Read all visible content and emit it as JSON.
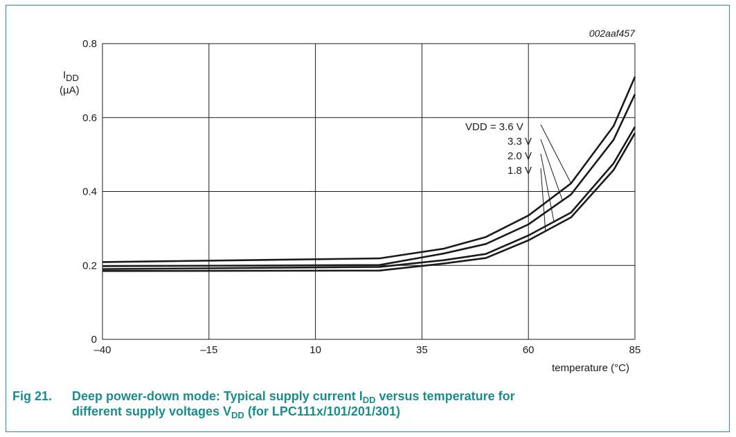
{
  "chart_data": {
    "type": "line",
    "figure_id": "002aaf457",
    "ylabel_main": "I",
    "ylabel_sub": "DD",
    "ylabel_unit": "(µA)",
    "xlabel": "temperature (°C)",
    "xlim": [
      -40,
      85
    ],
    "ylim": [
      0,
      0.8
    ],
    "x_ticks": [
      -40,
      -15,
      10,
      35,
      60,
      85
    ],
    "x_tick_labels": [
      "–40",
      "–15",
      "10",
      "35",
      "60",
      "85"
    ],
    "y_ticks": [
      0,
      0.2,
      0.4,
      0.6,
      0.8
    ],
    "y_tick_labels": [
      "0",
      "0.2",
      "0.4",
      "0.6",
      "0.8"
    ],
    "grid": true,
    "series": [
      {
        "name": "VDD = 3.6 V",
        "x": [
          -40,
          25,
          40,
          50,
          60,
          70,
          80,
          85
        ],
        "y": [
          0.209,
          0.219,
          0.245,
          0.277,
          0.335,
          0.422,
          0.577,
          0.71
        ]
      },
      {
        "name": "3.3 V",
        "x": [
          -40,
          25,
          40,
          50,
          60,
          70,
          80,
          85
        ],
        "y": [
          0.198,
          0.201,
          0.232,
          0.258,
          0.311,
          0.392,
          0.54,
          0.663
        ]
      },
      {
        "name": "2.0 V",
        "x": [
          -40,
          25,
          40,
          50,
          60,
          70,
          80,
          85
        ],
        "y": [
          0.19,
          0.196,
          0.214,
          0.231,
          0.281,
          0.343,
          0.476,
          0.575
        ]
      },
      {
        "name": "1.8 V",
        "x": [
          -40,
          25,
          40,
          50,
          60,
          70,
          80,
          85
        ],
        "y": [
          0.185,
          0.186,
          0.205,
          0.22,
          0.268,
          0.33,
          0.458,
          0.558
        ]
      }
    ]
  },
  "caption": {
    "fig_number": "Fig 21.",
    "line1_a": "Deep power-down mode: Typical supply current I",
    "line1_sub": "DD",
    "line1_b": " versus temperature for",
    "line2_a": "different supply voltages V",
    "line2_sub": "DD",
    "line2_b": " (for LPC111x/101/201/301)"
  },
  "colors": {
    "accent": "#1a8c8c",
    "line": "#1a1a1a"
  }
}
